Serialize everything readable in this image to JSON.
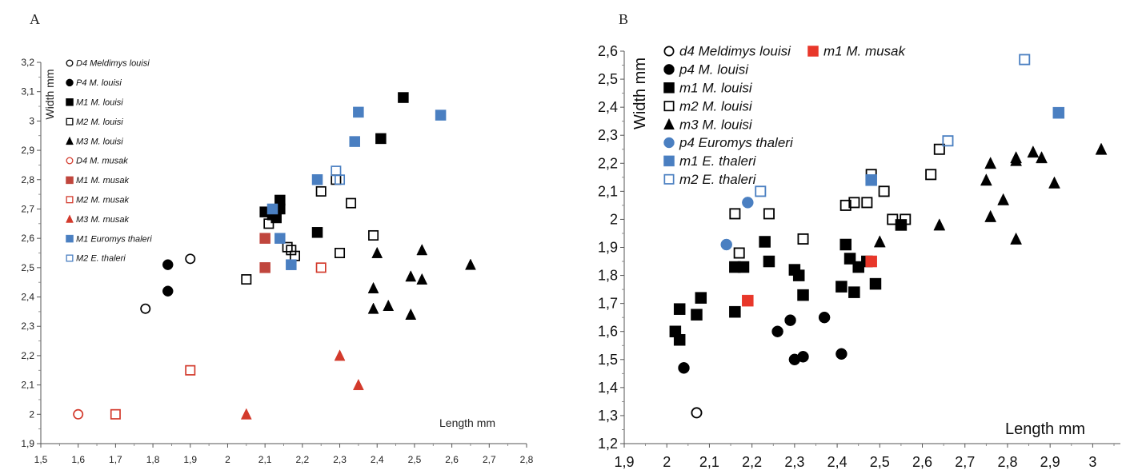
{
  "chart_data": [
    {
      "panel": "A",
      "type": "scatter",
      "xlabel": "Length mm",
      "ylabel": "Width mm",
      "xlim": [
        1.5,
        2.8
      ],
      "ylim": [
        1.9,
        3.2
      ],
      "xticks": [
        "1,5",
        "1,6",
        "1,7",
        "1,8",
        "1,9",
        "2",
        "2,1",
        "2,2",
        "2,3",
        "2,4",
        "2,5",
        "2,6",
        "2,7",
        "2,8"
      ],
      "yticks": [
        "1,9",
        "2",
        "2,1",
        "2,2",
        "2,3",
        "2,4",
        "2,5",
        "2,6",
        "2,7",
        "2,8",
        "2,9",
        "3",
        "3,1",
        "3,2"
      ],
      "legend_position": "top-left",
      "series": [
        {
          "name": "D4 Meldimys louisi",
          "marker": "circle-open",
          "color": "#000000",
          "points": [
            [
              1.78,
              2.36
            ],
            [
              1.9,
              2.53
            ]
          ]
        },
        {
          "name": "P4 M. louisi",
          "marker": "circle",
          "color": "#000000",
          "points": [
            [
              1.84,
              2.51
            ],
            [
              1.84,
              2.42
            ]
          ]
        },
        {
          "name": "M1 M. louisi",
          "marker": "square",
          "color": "#000000",
          "points": [
            [
              2.1,
              2.69
            ],
            [
              2.12,
              2.68
            ],
            [
              2.13,
              2.67
            ],
            [
              2.14,
              2.73
            ],
            [
              2.14,
              2.7
            ],
            [
              2.24,
              2.62
            ],
            [
              2.41,
              2.94
            ],
            [
              2.47,
              3.08
            ]
          ]
        },
        {
          "name": "M2 M. louisi",
          "marker": "square-open",
          "color": "#000000",
          "points": [
            [
              2.05,
              2.46
            ],
            [
              2.11,
              2.65
            ],
            [
              2.16,
              2.57
            ],
            [
              2.17,
              2.56
            ],
            [
              2.18,
              2.54
            ],
            [
              2.25,
              2.76
            ],
            [
              2.29,
              2.8
            ],
            [
              2.3,
              2.55
            ],
            [
              2.33,
              2.72
            ],
            [
              2.39,
              2.61
            ]
          ]
        },
        {
          "name": "M3 M. louisi",
          "marker": "triangle",
          "color": "#000000",
          "points": [
            [
              2.39,
              2.43
            ],
            [
              2.39,
              2.36
            ],
            [
              2.4,
              2.55
            ],
            [
              2.43,
              2.37
            ],
            [
              2.49,
              2.47
            ],
            [
              2.49,
              2.34
            ],
            [
              2.52,
              2.56
            ],
            [
              2.52,
              2.46
            ],
            [
              2.65,
              2.51
            ]
          ]
        },
        {
          "name": "D4 M. musak",
          "marker": "circle-open",
          "color": "#d33a2c",
          "points": [
            [
              1.6,
              2.0
            ]
          ]
        },
        {
          "name": "M1 M. musak",
          "marker": "square",
          "color": "#c0463d",
          "points": [
            [
              2.1,
              2.6
            ],
            [
              2.1,
              2.5
            ]
          ]
        },
        {
          "name": "M2 M. musak",
          "marker": "square-open",
          "color": "#d33a2c",
          "points": [
            [
              1.7,
              2.0
            ],
            [
              1.9,
              2.15
            ],
            [
              2.25,
              2.5
            ]
          ]
        },
        {
          "name": "M3 M. musak",
          "marker": "triangle",
          "color": "#d33a2c",
          "points": [
            [
              2.05,
              2.0
            ],
            [
              2.3,
              2.2
            ],
            [
              2.35,
              2.1
            ]
          ]
        },
        {
          "name": "M1 Euromys thaleri",
          "marker": "square",
          "color": "#4a7fc1",
          "points": [
            [
              2.12,
              2.7
            ],
            [
              2.14,
              2.6
            ],
            [
              2.17,
              2.51
            ],
            [
              2.24,
              2.8
            ],
            [
              2.34,
              2.93
            ],
            [
              2.35,
              3.03
            ],
            [
              2.57,
              3.02
            ]
          ]
        },
        {
          "name": "M2 E. thaleri",
          "marker": "square-open",
          "color": "#4a7fc1",
          "points": [
            [
              2.29,
              2.83
            ],
            [
              2.3,
              2.8
            ]
          ]
        }
      ]
    },
    {
      "panel": "B",
      "type": "scatter",
      "xlabel": "Length mm",
      "ylabel": "Width mm",
      "xlim": [
        1.9,
        3.05
      ],
      "ylim": [
        1.2,
        2.6
      ],
      "xticks": [
        "1,9",
        "2",
        "2,1",
        "2,2",
        "2,3",
        "2,4",
        "2,5",
        "2,6",
        "2,7",
        "2,8",
        "2,9",
        "3"
      ],
      "yticks": [
        "1,2",
        "1,3",
        "1,4",
        "1,5",
        "1,6",
        "1,7",
        "1,8",
        "1,9",
        "2",
        "2,1",
        "2,2",
        "2,3",
        "2,4",
        "2,5",
        "2,6"
      ],
      "legend_position": "top-left",
      "series": [
        {
          "name": "d4 Meldimys louisi",
          "marker": "circle-open",
          "color": "#000000",
          "points": [
            [
              2.07,
              1.31
            ]
          ]
        },
        {
          "name": "p4 M. louisi",
          "marker": "circle",
          "color": "#000000",
          "points": [
            [
              2.04,
              1.47
            ],
            [
              2.26,
              1.6
            ],
            [
              2.29,
              1.64
            ],
            [
              2.3,
              1.5
            ],
            [
              2.32,
              1.51
            ],
            [
              2.37,
              1.65
            ],
            [
              2.41,
              1.52
            ]
          ]
        },
        {
          "name": "m1 M. louisi",
          "marker": "square",
          "color": "#000000",
          "points": [
            [
              2.02,
              1.6
            ],
            [
              2.03,
              1.57
            ],
            [
              2.03,
              1.68
            ],
            [
              2.07,
              1.66
            ],
            [
              2.08,
              1.72
            ],
            [
              2.16,
              1.67
            ],
            [
              2.16,
              1.83
            ],
            [
              2.18,
              1.83
            ],
            [
              2.23,
              1.92
            ],
            [
              2.24,
              1.85
            ],
            [
              2.3,
              1.82
            ],
            [
              2.31,
              1.8
            ],
            [
              2.32,
              1.73
            ],
            [
              2.41,
              1.76
            ],
            [
              2.42,
              1.91
            ],
            [
              2.43,
              1.86
            ],
            [
              2.44,
              1.74
            ],
            [
              2.45,
              1.83
            ],
            [
              2.47,
              1.85
            ],
            [
              2.49,
              1.77
            ],
            [
              2.55,
              1.98
            ]
          ]
        },
        {
          "name": "m2 M. louisi",
          "marker": "square-open",
          "color": "#000000",
          "points": [
            [
              2.16,
              2.02
            ],
            [
              2.17,
              1.88
            ],
            [
              2.24,
              2.02
            ],
            [
              2.32,
              1.93
            ],
            [
              2.42,
              2.05
            ],
            [
              2.44,
              2.06
            ],
            [
              2.47,
              2.06
            ],
            [
              2.48,
              2.16
            ],
            [
              2.51,
              2.1
            ],
            [
              2.53,
              2.0
            ],
            [
              2.56,
              2.0
            ],
            [
              2.62,
              2.16
            ],
            [
              2.64,
              2.25
            ]
          ]
        },
        {
          "name": "m3 M. louisi",
          "marker": "triangle",
          "color": "#000000",
          "points": [
            [
              2.5,
              1.92
            ],
            [
              2.64,
              1.98
            ],
            [
              2.75,
              2.14
            ],
            [
              2.76,
              2.2
            ],
            [
              2.76,
              2.01
            ],
            [
              2.79,
              2.07
            ],
            [
              2.82,
              2.21
            ],
            [
              2.82,
              2.22
            ],
            [
              2.82,
              1.93
            ],
            [
              2.86,
              2.24
            ],
            [
              2.88,
              2.22
            ],
            [
              2.91,
              2.13
            ],
            [
              3.02,
              2.25
            ]
          ]
        },
        {
          "name": "p4 Euromys thaleri",
          "marker": "circle",
          "color": "#4a7fc1",
          "points": [
            [
              2.14,
              1.91
            ],
            [
              2.19,
              2.06
            ]
          ]
        },
        {
          "name": "m1 E. thaleri",
          "marker": "square",
          "color": "#4a7fc1",
          "points": [
            [
              2.48,
              2.14
            ],
            [
              2.92,
              2.38
            ]
          ]
        },
        {
          "name": "m2 E. thaleri",
          "marker": "square-open",
          "color": "#4a7fc1",
          "points": [
            [
              2.22,
              2.1
            ],
            [
              2.66,
              2.28
            ],
            [
              2.84,
              2.57
            ]
          ]
        },
        {
          "name": "m1 M. musak",
          "marker": "square",
          "color": "#e8372a",
          "points": [
            [
              2.19,
              1.71
            ],
            [
              2.48,
              1.85
            ]
          ]
        }
      ]
    }
  ]
}
